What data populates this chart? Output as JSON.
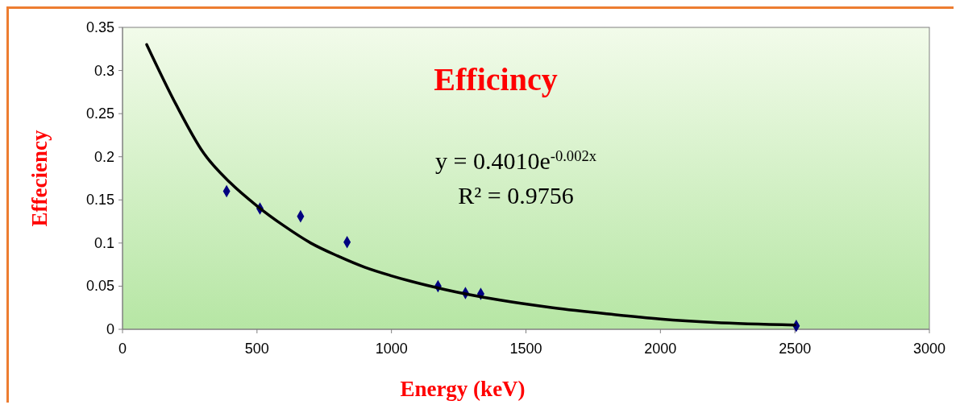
{
  "chart_data": {
    "type": "scatter",
    "title": "Efficincy",
    "xlabel": "Energy (keV)",
    "ylabel": "Effeciency",
    "annotations": [
      "y = 0.4010e$^{-0.002x}$",
      "R² = 0.9756"
    ],
    "xlim": [
      0,
      3000
    ],
    "xticks": [
      0,
      500,
      1000,
      1500,
      2000,
      2500,
      3000
    ],
    "ylim": [
      0,
      0.35
    ],
    "yticks": [
      0,
      0.05,
      0.1,
      0.15,
      0.2,
      0.25,
      0.3,
      0.35
    ],
    "grid": false,
    "marker": "diamond",
    "series": [
      {
        "color": "#000080",
        "x": [
          387,
          511,
          662,
          835,
          1173,
          1275,
          1332,
          2505
        ],
        "values": [
          0.16,
          0.14,
          0.131,
          0.101,
          0.05,
          0.042,
          0.041,
          0.004
        ]
      },
      {
        "type": "line",
        "color": "#000000",
        "line_style": "solid",
        "marker": "none",
        "x": [
          90,
          200,
          300,
          400,
          500,
          600,
          700,
          800,
          900,
          1000,
          1200,
          1400,
          1600,
          1800,
          2000,
          2200,
          2500
        ],
        "values": [
          0.33,
          0.26,
          0.205,
          0.17,
          0.143,
          0.12,
          0.1,
          0.085,
          0.072,
          0.062,
          0.046,
          0.034,
          0.025,
          0.018,
          0.012,
          0.008,
          0.005
        ]
      }
    ]
  }
}
